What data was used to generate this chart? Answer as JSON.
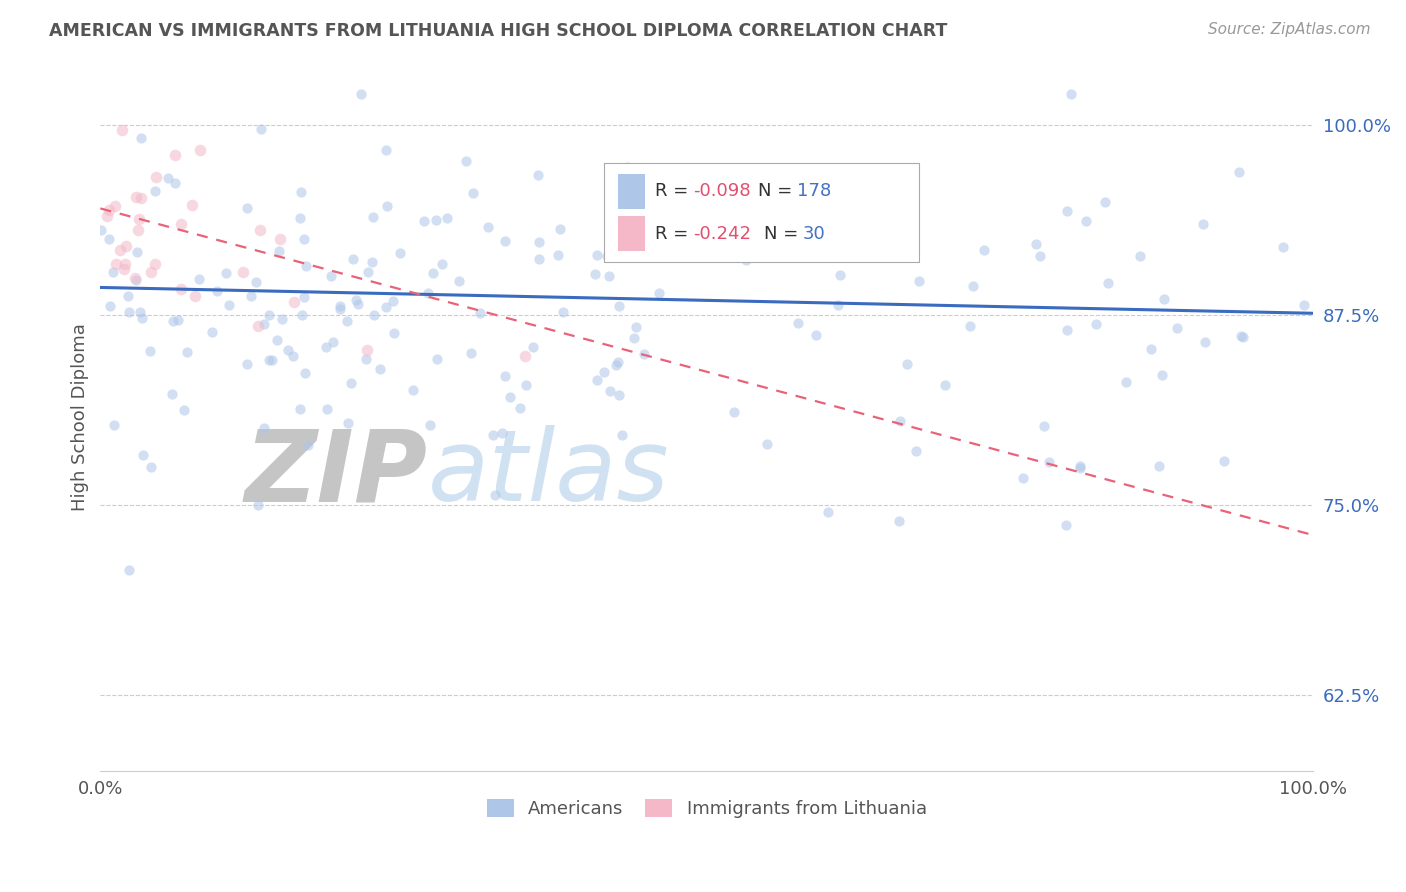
{
  "title": "AMERICAN VS IMMIGRANTS FROM LITHUANIA HIGH SCHOOL DIPLOMA CORRELATION CHART",
  "source": "Source: ZipAtlas.com",
  "ylabel": "High School Diploma",
  "blue_R": -0.098,
  "blue_N": 178,
  "pink_R": -0.242,
  "pink_N": 30,
  "blue_color": "#aec6e8",
  "blue_line_color": "#3a6bbf",
  "pink_color": "#f4b8c8",
  "pink_line_color": "#e8637a",
  "title_color": "#555555",
  "source_color": "#999999",
  "legend_R_color": "#e05070",
  "legend_N_color": "#4472c4",
  "zip_color": "#bbbbbb",
  "atlas_color": "#c8ddf0",
  "xmin": 0.0,
  "xmax": 1.0,
  "ymin": 0.575,
  "ymax": 1.04,
  "yticks": [
    0.625,
    0.75,
    0.875,
    1.0
  ],
  "ytick_labels": [
    "62.5%",
    "75.0%",
    "87.5%",
    "100.0%"
  ],
  "background_color": "#ffffff",
  "grid_color": "#cccccc",
  "dot_size_blue": 55,
  "dot_size_pink": 70,
  "dot_alpha": 0.55
}
